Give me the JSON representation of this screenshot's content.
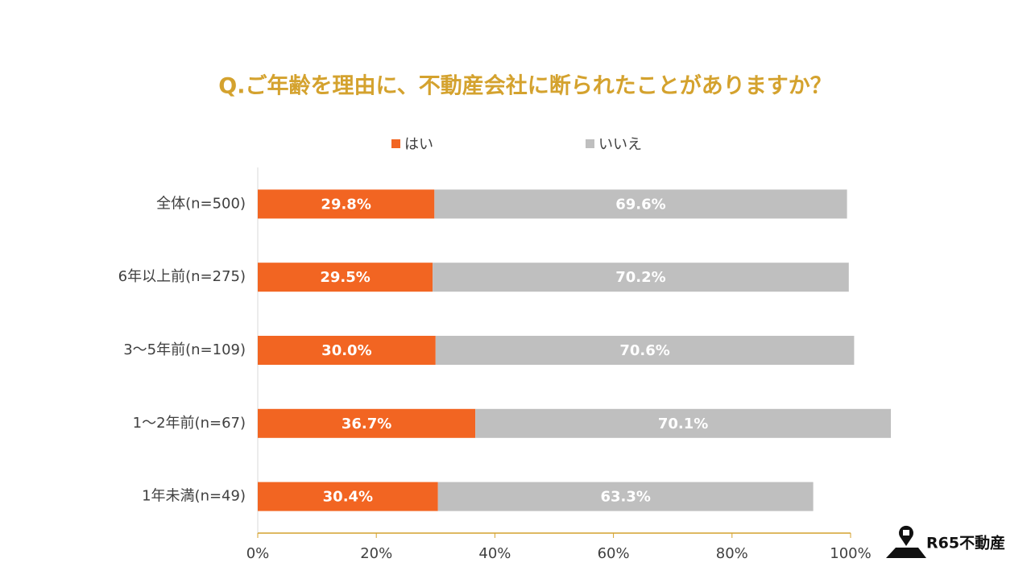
{
  "chart_data": {
    "type": "stacked-bar-horizontal",
    "title": "Q.ご年齢を理由に、不動産会社に断られたことがありますか？",
    "categories": [
      "全体(n=500)",
      "6年以上前(n=275)",
      "3〜5年前(n=109)",
      "1〜2年前(n=67)",
      "1年未満(n=49)"
    ],
    "series": [
      {
        "name": "はい",
        "color": "#f26522",
        "values": [
          29.8,
          29.5,
          30.0,
          36.7,
          30.4
        ],
        "value_labels": [
          "29.8%",
          "29.5%",
          "30.0%",
          "36.7%",
          "30.4%"
        ]
      },
      {
        "name": "いいえ",
        "color": "#bfbfbf",
        "values": [
          69.6,
          70.2,
          70.6,
          70.1,
          63.3
        ],
        "value_labels": [
          "69.6%",
          "70.2%",
          "70.6%",
          "70.1%",
          "63.3%"
        ]
      }
    ],
    "xlim": [
      0,
      100
    ],
    "xticks": [
      {
        "value": 0,
        "label": "0%"
      },
      {
        "value": 20,
        "label": "20%"
      },
      {
        "value": 40,
        "label": "40%"
      },
      {
        "value": 60,
        "label": "60%"
      },
      {
        "value": 80,
        "label": "80%"
      },
      {
        "value": 100,
        "label": "100%"
      }
    ],
    "legend": "top"
  },
  "brand": "R65不動産"
}
